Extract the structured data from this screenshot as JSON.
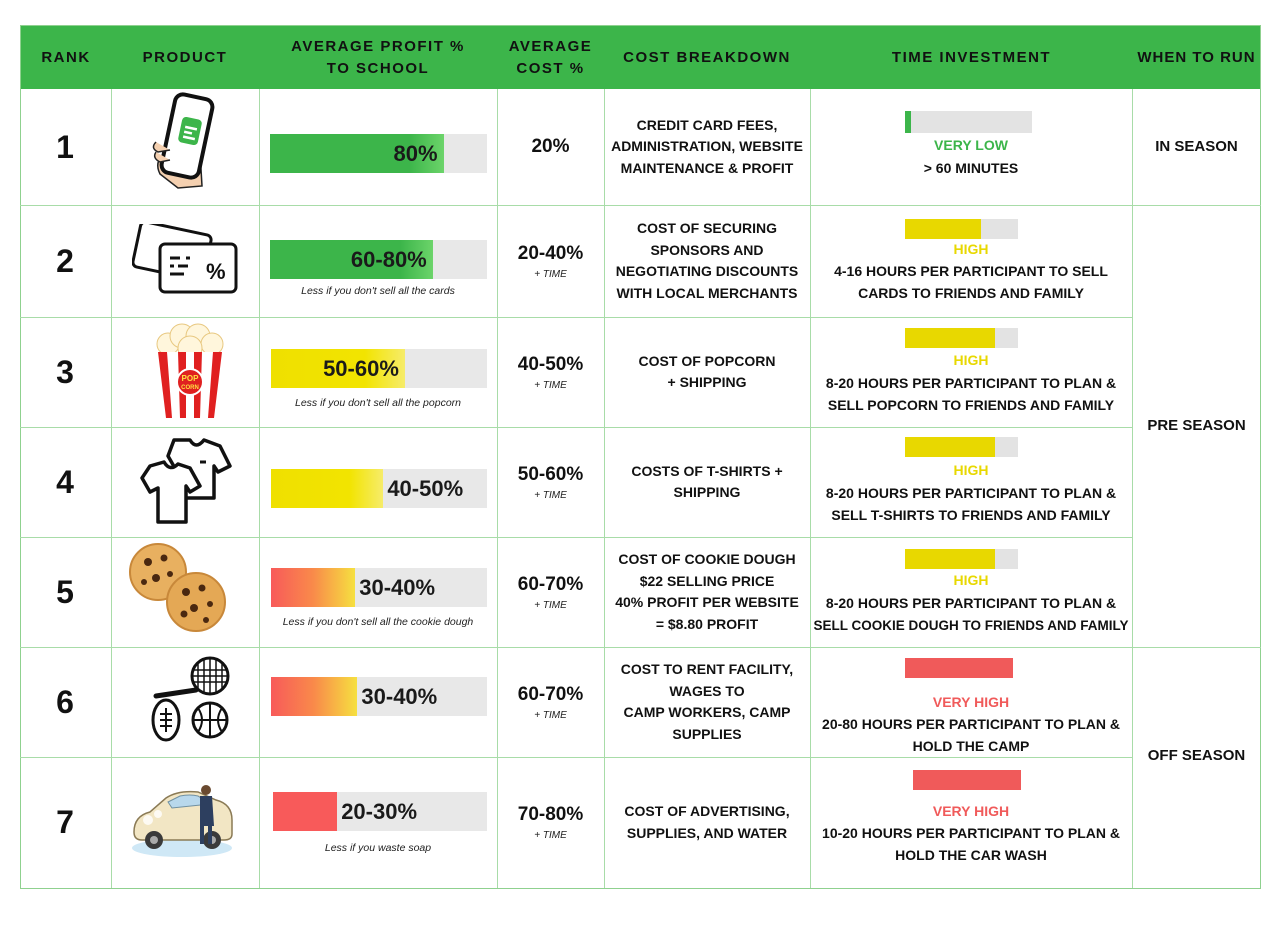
{
  "colors": {
    "header": "#3cb54a",
    "green": "#3cb54a",
    "yellow": "#f0e000",
    "red": "#f85a5a",
    "grid": "#a8dca8"
  },
  "headers": {
    "rank": "RANK",
    "product": "PRODUCT",
    "profit": "AVERAGE PROFIT % TO SCHOOL",
    "cost": "AVERAGE COST %",
    "breakdown": "COST BREAKDOWN",
    "time": "TIME INVESTMENT",
    "when": "WHEN TO RUN"
  },
  "rows": [
    {
      "rank": "1",
      "icon": "phone-app-icon",
      "profit": "80%",
      "profit_fraction": 0.8,
      "bar_color": "green",
      "profit_note": "",
      "cost": "20%",
      "cost_note": "",
      "breakdown": [
        "CREDIT CARD FEES,",
        "ADMINISTRATION, WEBSITE",
        "MAINTENANCE & PROFIT"
      ],
      "time_level": "VERY LOW",
      "time_level_color": "#3cb54a",
      "time_fraction": 0.05,
      "time_desc": [
        "> 60 MINUTES"
      ]
    },
    {
      "rank": "2",
      "icon": "discount-card-icon",
      "profit": "60-80%",
      "profit_fraction": 0.75,
      "bar_color": "green",
      "profit_note": "Less if you don't sell all the cards",
      "cost": "20-40%",
      "cost_note": "+ TIME",
      "breakdown": [
        "COST OF SECURING",
        "SPONSORS AND",
        "NEGOTIATING DISCOUNTS",
        "WITH LOCAL MERCHANTS"
      ],
      "time_level": "HIGH",
      "time_level_color": "#e8d800",
      "time_fraction": 0.67,
      "time_desc": [
        "4-16 HOURS PER PARTICIPANT TO SELL",
        "CARDS TO FRIENDS AND FAMILY"
      ]
    },
    {
      "rank": "3",
      "icon": "popcorn-icon",
      "profit": "50-60%",
      "profit_fraction": 0.62,
      "bar_color": "yellow",
      "profit_note": "Less if you don't sell all the popcorn",
      "cost": "40-50%",
      "cost_note": "+ TIME",
      "breakdown": [
        "COST OF POPCORN",
        "+ SHIPPING"
      ],
      "time_level": "HIGH",
      "time_level_color": "#e8d800",
      "time_fraction": 0.8,
      "time_desc": [
        "8-20 HOURS PER PARTICIPANT TO PLAN &",
        "SELL POPCORN TO FRIENDS AND FAMILY"
      ]
    },
    {
      "rank": "4",
      "icon": "t-shirt-icon",
      "profit": "40-50%",
      "profit_fraction": 0.52,
      "bar_color": "yellow",
      "profit_note": "",
      "cost": "50-60%",
      "cost_note": "+ TIME",
      "breakdown": [
        "COSTS OF T-SHIRTS +",
        "SHIPPING"
      ],
      "time_level": "HIGH",
      "time_level_color": "#e8d800",
      "time_fraction": 0.8,
      "time_desc": [
        "8-20 HOURS PER PARTICIPANT TO PLAN &",
        "SELL T-SHIRTS TO FRIENDS AND FAMILY"
      ]
    },
    {
      "rank": "5",
      "icon": "cookie-icon",
      "profit": "30-40%",
      "profit_fraction": 0.39,
      "bar_color": "red",
      "profit_note": "Less if you don't sell all the  cookie dough",
      "cost": "60-70%",
      "cost_note": "+ TIME",
      "breakdown": [
        "COST OF COOKIE DOUGH",
        "$22 SELLING PRICE",
        "40% PROFIT PER WEBSITE",
        "= $8.80 PROFIT"
      ],
      "time_level": "HIGH",
      "time_level_color": "#e8d800",
      "time_fraction": 0.8,
      "time_desc": [
        "8-20 HOURS PER PARTICIPANT TO PLAN &",
        "SELL COOKIE DOUGH TO FRIENDS AND FAMILY"
      ]
    },
    {
      "rank": "6",
      "icon": "sports-camp-icon",
      "profit": "30-40%",
      "profit_fraction": 0.4,
      "bar_color": "red",
      "profit_note": "",
      "cost": "60-70%",
      "cost_note": "+ TIME",
      "breakdown": [
        "COST TO RENT FACILITY,",
        "WAGES TO",
        "CAMP WORKERS, CAMP",
        "SUPPLIES"
      ],
      "time_level": "VERY HIGH",
      "time_level_color": "#f05a5a",
      "time_fraction": 1.0,
      "time_desc": [
        "20-80 HOURS PER PARTICIPANT TO PLAN &",
        "HOLD THE CAMP"
      ]
    },
    {
      "rank": "7",
      "icon": "car-wash-icon",
      "profit": "20-30%",
      "profit_fraction": 0.3,
      "bar_color": "red",
      "profit_note": "Less if you waste soap",
      "cost": "70-80%",
      "cost_note": "+ TIME",
      "breakdown": [
        "COST OF ADVERTISING,",
        "SUPPLIES, AND WATER"
      ],
      "time_level": "VERY HIGH",
      "time_level_color": "#f05a5a",
      "time_fraction": 1.0,
      "time_desc": [
        "10-20 HOURS PER PARTICIPANT TO PLAN &",
        "HOLD THE CAR WASH"
      ]
    }
  ],
  "seasons": [
    {
      "label": "IN SEASON"
    },
    {
      "label": "PRE SEASON"
    },
    {
      "label": "OFF SEASON"
    }
  ]
}
